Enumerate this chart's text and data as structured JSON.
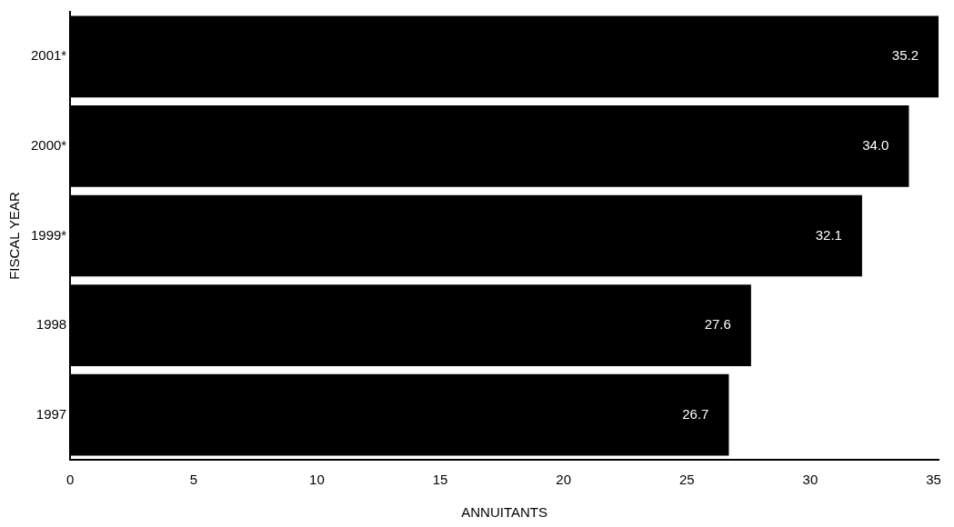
{
  "chart_data": {
    "type": "bar",
    "orientation": "horizontal",
    "xlabel": "ANNUITANTS",
    "ylabel": "FISCAL YEAR",
    "categories": [
      "2001*",
      "2000*",
      "1999*",
      "1998",
      "1997"
    ],
    "values": [
      35.2,
      34.0,
      32.1,
      27.6,
      26.7
    ],
    "color": "#000000",
    "value_labels": [
      "35.2",
      "34.0",
      "32.1",
      "27.6",
      "26.7"
    ],
    "xlim": [
      0,
      35.2
    ],
    "xticks": [
      0,
      5,
      10,
      15,
      20,
      25,
      30,
      35
    ],
    "grid": false,
    "legend": false
  }
}
